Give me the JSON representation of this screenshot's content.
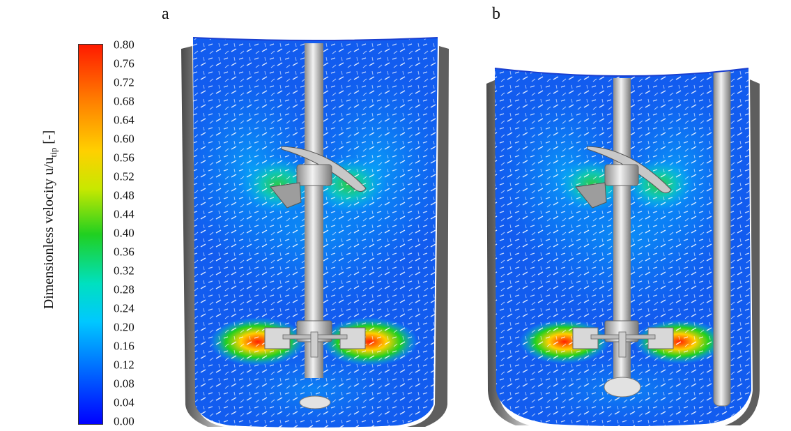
{
  "colorbar": {
    "label_main": "Dimensionless velocity u/u",
    "label_sub": "tip",
    "label_tail": " [-]",
    "ticks": [
      "0.80",
      "0.76",
      "0.72",
      "0.68",
      "0.64",
      "0.60",
      "0.56",
      "0.52",
      "0.48",
      "0.44",
      "0.40",
      "0.36",
      "0.32",
      "0.28",
      "0.24",
      "0.20",
      "0.16",
      "0.12",
      "0.08",
      "0.04",
      "0.00"
    ],
    "colors": [
      "#ff1a00",
      "#ff8000",
      "#ffd000",
      "#20d020",
      "#00c8ff",
      "#0070ff",
      "#0000ff"
    ]
  },
  "panels": [
    {
      "label": "a"
    },
    {
      "label": "b"
    }
  ]
}
